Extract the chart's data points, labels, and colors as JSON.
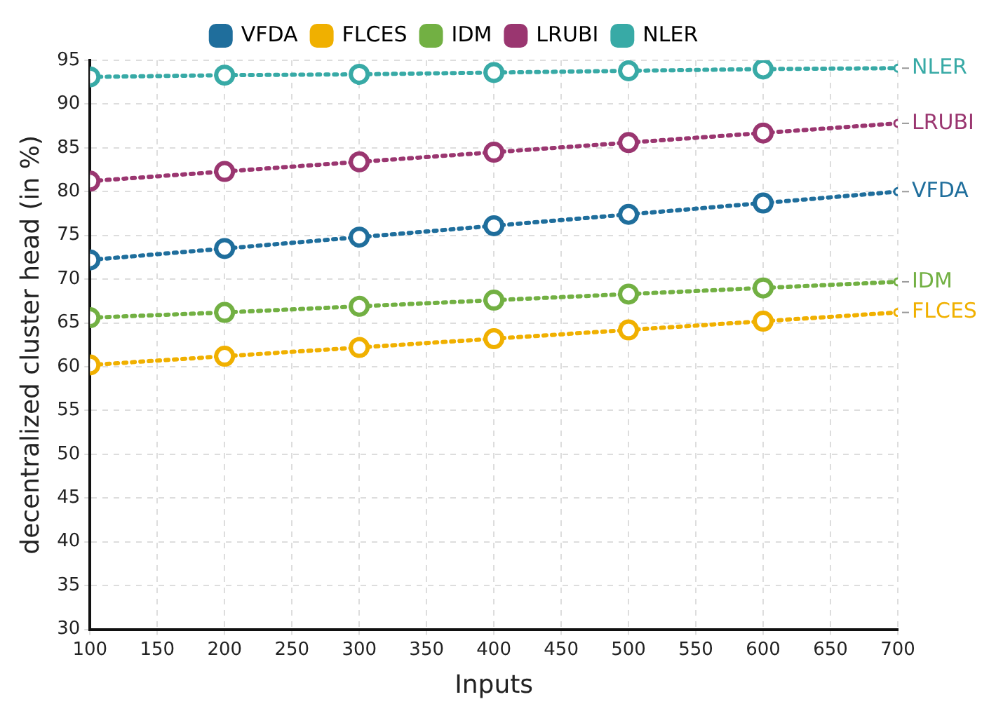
{
  "chart_data": {
    "type": "line",
    "xlabel": "Inputs",
    "ylabel": "decentralized cluster head (in %)",
    "x": [
      100,
      200,
      300,
      400,
      500,
      600,
      700
    ],
    "series": [
      {
        "name": "VFDA",
        "color": "#1f6e9c",
        "values": [
          72.2,
          73.5,
          74.8,
          76.1,
          77.4,
          78.7,
          80.0
        ]
      },
      {
        "name": "FLCES",
        "color": "#f0b000",
        "values": [
          60.2,
          61.2,
          62.2,
          63.2,
          64.2,
          65.2,
          66.2
        ]
      },
      {
        "name": "IDM",
        "color": "#72b043",
        "values": [
          65.6,
          66.2,
          66.9,
          67.6,
          68.3,
          69.0,
          69.7
        ]
      },
      {
        "name": "LRUBI",
        "color": "#9a3670",
        "values": [
          81.2,
          82.3,
          83.4,
          84.5,
          85.6,
          86.7,
          87.8
        ]
      },
      {
        "name": "NLER",
        "color": "#38aaa6",
        "values": [
          93.1,
          93.3,
          93.4,
          93.6,
          93.8,
          94.0,
          94.1
        ]
      }
    ],
    "xlim": [
      100,
      700
    ],
    "xticks": [
      100,
      150,
      200,
      250,
      300,
      350,
      400,
      450,
      500,
      550,
      600,
      650,
      700
    ],
    "ylim": [
      30,
      95
    ],
    "yticks": [
      30,
      35,
      40,
      45,
      50,
      55,
      60,
      65,
      70,
      75,
      80,
      85,
      90,
      95
    ],
    "grid": true,
    "legend": "top",
    "marker": "circle",
    "line_style": "dotted"
  }
}
